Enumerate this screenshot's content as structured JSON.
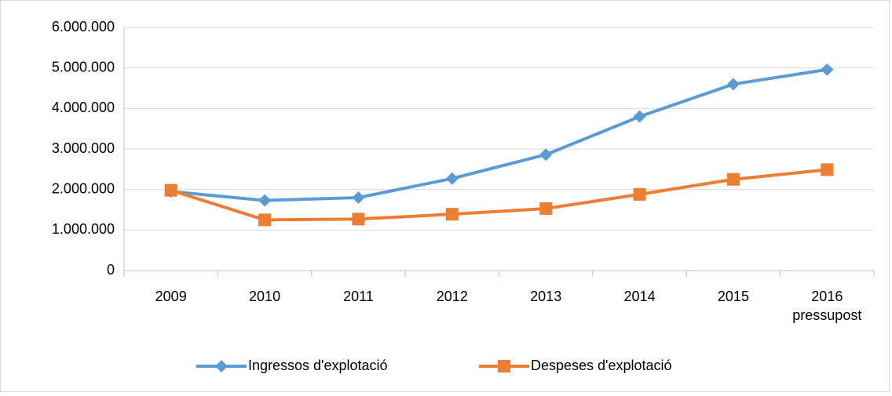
{
  "chart_data": {
    "type": "line",
    "categories": [
      "2009",
      "2010",
      "2011",
      "2012",
      "2013",
      "2014",
      "2015",
      "2016 pressupost"
    ],
    "series": [
      {
        "name": "Ingressos d'explotació",
        "color": "#5b9bd5",
        "marker": "diamond",
        "values": [
          1950000,
          1730000,
          1800000,
          2270000,
          2860000,
          3800000,
          4600000,
          4960000
        ]
      },
      {
        "name": "Despeses d'explotació",
        "color": "#ed7d31",
        "marker": "square",
        "values": [
          1980000,
          1250000,
          1270000,
          1390000,
          1530000,
          1880000,
          2250000,
          2490000
        ]
      }
    ],
    "ylim": [
      0,
      6000000
    ],
    "yticks": [
      0,
      {
        "value": 1000000,
        "label": "1.000.000"
      },
      {
        "value": 2000000,
        "label": "2.000.000"
      },
      {
        "value": 3000000,
        "label": "3.000.000"
      },
      {
        "value": 4000000,
        "label": "4.000.000"
      },
      {
        "value": 5000000,
        "label": "5.000.000"
      },
      {
        "value": 6000000,
        "label": "6.000.000"
      }
    ],
    "grid": true,
    "legend": "bottom"
  }
}
